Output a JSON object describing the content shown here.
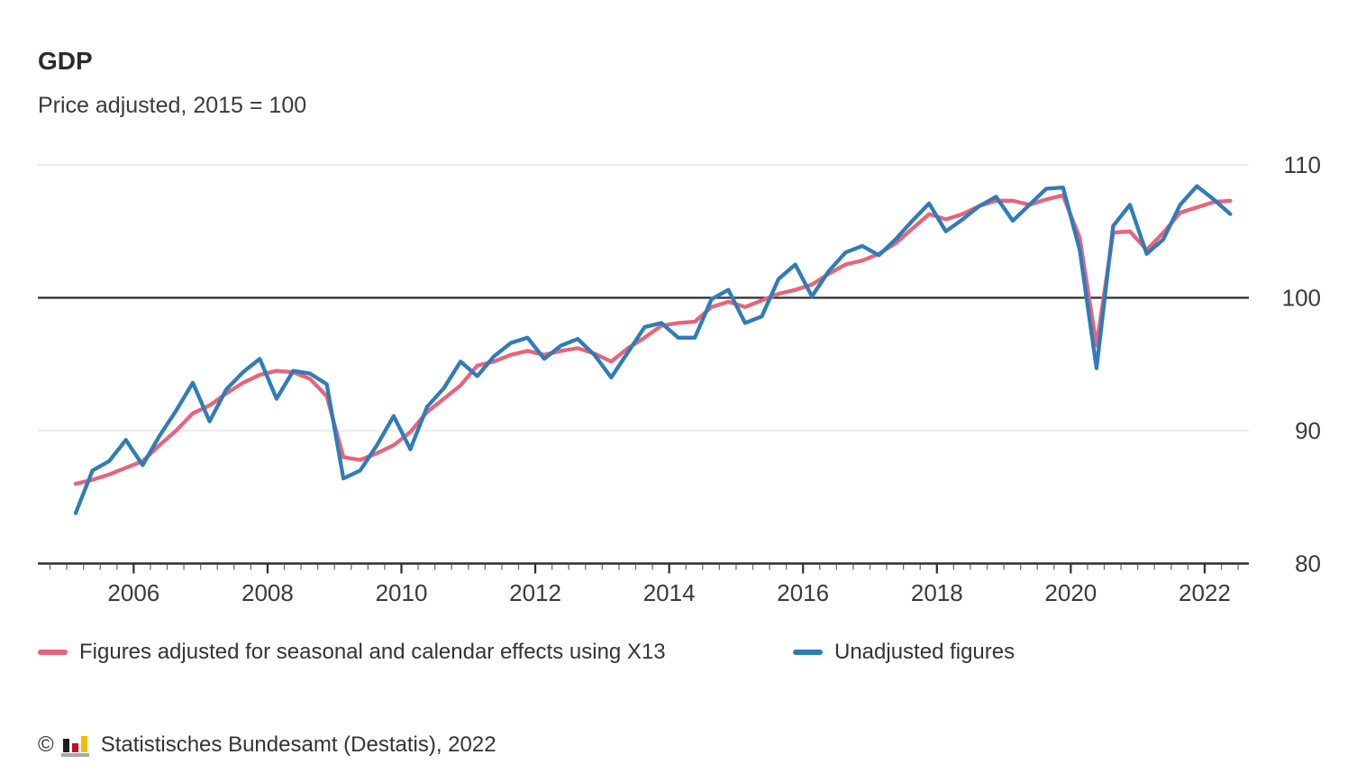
{
  "header": {
    "title": "GDP",
    "subtitle": "Price adjusted, 2015 = 100"
  },
  "chart_data": {
    "type": "line",
    "frequency": "quarterly",
    "x_start": "2005 Q1",
    "x_end": "2022 Q2",
    "x_tick_labels": [
      "2006",
      "2008",
      "2010",
      "2012",
      "2014",
      "2016",
      "2018",
      "2020",
      "2022"
    ],
    "y_ticks": [
      80,
      90,
      100,
      110
    ],
    "ylim": [
      80,
      110
    ],
    "baseline_value": 100,
    "grid": "horizontal-only",
    "legend_position": "bottom",
    "series": [
      {
        "name": "Figures adjusted for seasonal and calendar effects using X13",
        "color": "#e8647a",
        "values": [
          86.0,
          86.3,
          86.7,
          87.2,
          87.7,
          88.9,
          90.0,
          91.3,
          91.9,
          92.8,
          93.6,
          94.2,
          94.5,
          94.4,
          93.9,
          92.6,
          88.0,
          87.8,
          88.3,
          88.9,
          89.9,
          91.4,
          92.4,
          93.4,
          94.9,
          95.2,
          95.7,
          96.0,
          95.7,
          96.0,
          96.2,
          95.8,
          95.2,
          96.2,
          97.0,
          97.9,
          98.1,
          98.2,
          99.3,
          99.7,
          99.3,
          99.8,
          100.3,
          100.6,
          101.0,
          101.8,
          102.5,
          102.8,
          103.3,
          104.1,
          105.2,
          106.3,
          105.9,
          106.3,
          106.9,
          107.3,
          107.3,
          107.0,
          107.4,
          107.7,
          104.5,
          96.4,
          104.9,
          105.0,
          103.6,
          104.9,
          106.4,
          106.8,
          107.2,
          107.3
        ]
      },
      {
        "name": "Unadjusted figures",
        "color": "#2f7cb8",
        "values": [
          83.8,
          87.0,
          87.7,
          89.3,
          87.4,
          89.6,
          91.5,
          93.6,
          90.7,
          93.1,
          94.4,
          95.4,
          92.4,
          94.5,
          94.3,
          93.5,
          86.4,
          87.0,
          88.9,
          91.1,
          88.6,
          91.8,
          93.2,
          95.2,
          94.1,
          95.6,
          96.6,
          97.0,
          95.4,
          96.4,
          96.9,
          95.7,
          94.0,
          95.9,
          97.8,
          98.1,
          97.0,
          97.0,
          99.9,
          100.6,
          98.1,
          98.6,
          101.4,
          102.5,
          100.1,
          102.0,
          103.4,
          103.9,
          103.2,
          104.4,
          105.8,
          107.1,
          105.0,
          105.9,
          106.9,
          107.6,
          105.8,
          107.0,
          108.2,
          108.3,
          103.6,
          94.7,
          105.4,
          107.0,
          103.3,
          104.4,
          107.0,
          108.4,
          107.4,
          106.3
        ]
      }
    ]
  },
  "colors": {
    "baseline": "#2e2e2e",
    "gridline": "#e1e1e1",
    "axis": "#2e2e2e",
    "tick_minor": "#6e6e6e",
    "label_text": "#3a3a3a",
    "logo_black": "#1d1d1b",
    "logo_red": "#c50e1f",
    "logo_yellow": "#f2bd00",
    "logo_gray": "#a8a8a8"
  },
  "footer": {
    "copyright_symbol": "©",
    "text": "Statistisches Bundesamt (Destatis), 2022"
  }
}
